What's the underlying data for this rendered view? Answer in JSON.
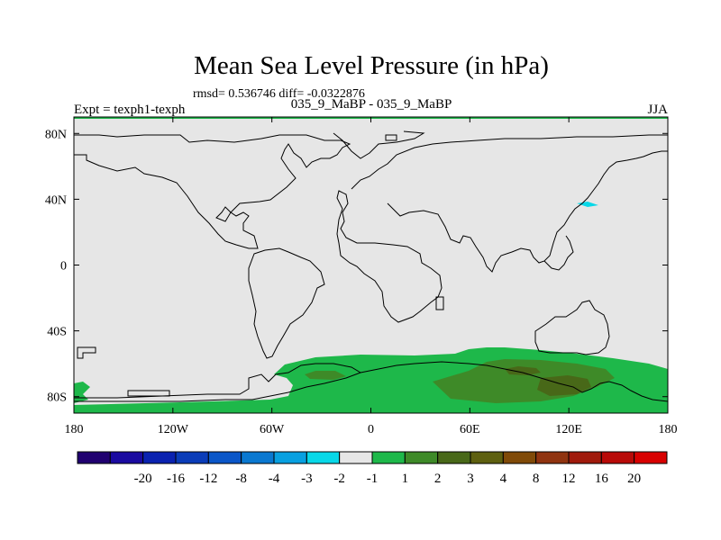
{
  "title": "Mean Sea Level Pressure (in hPa)",
  "stats": "rmsd= 0.536746 diff= -0.0322876",
  "experiment": "Expt = texph1-texph",
  "runs": "035_9_MaBP - 035_9_MaBP",
  "season": "JJA",
  "map": {
    "ocean_color": "#e6e6e6",
    "coast_color": "#000000",
    "x_ticks": [
      {
        "lon": -180,
        "label": "180"
      },
      {
        "lon": -120,
        "label": "120W"
      },
      {
        "lon": -60,
        "label": "60W"
      },
      {
        "lon": 0,
        "label": "0"
      },
      {
        "lon": 60,
        "label": "60E"
      },
      {
        "lon": 120,
        "label": "120E"
      },
      {
        "lon": 180,
        "label": "180"
      }
    ],
    "y_ticks": [
      {
        "lat": 80,
        "label": "80N"
      },
      {
        "lat": 40,
        "label": "40N"
      },
      {
        "lat": 0,
        "label": "0"
      },
      {
        "lat": -40,
        "label": "40S"
      },
      {
        "lat": -80,
        "label": "80S"
      }
    ],
    "lon_range": [
      -180,
      180
    ],
    "lat_range": [
      -90,
      90
    ]
  },
  "colorbar": {
    "colors": [
      "#200070",
      "#1a0aa0",
      "#0a22b0",
      "#0a3cb8",
      "#0a56c8",
      "#0a78d0",
      "#08a0e0",
      "#08d8e8",
      "#e6e6e6",
      "#1eb84a",
      "#3e8a28",
      "#486818",
      "#5e6010",
      "#804a08",
      "#903410",
      "#a01a0c",
      "#b80a08",
      "#d80000"
    ],
    "labels": [
      "-20",
      "-16",
      "-12",
      "-8",
      "-4",
      "-3",
      "-2",
      "-1",
      "1",
      "2",
      "3",
      "4",
      "8",
      "12",
      "16",
      "20"
    ]
  }
}
